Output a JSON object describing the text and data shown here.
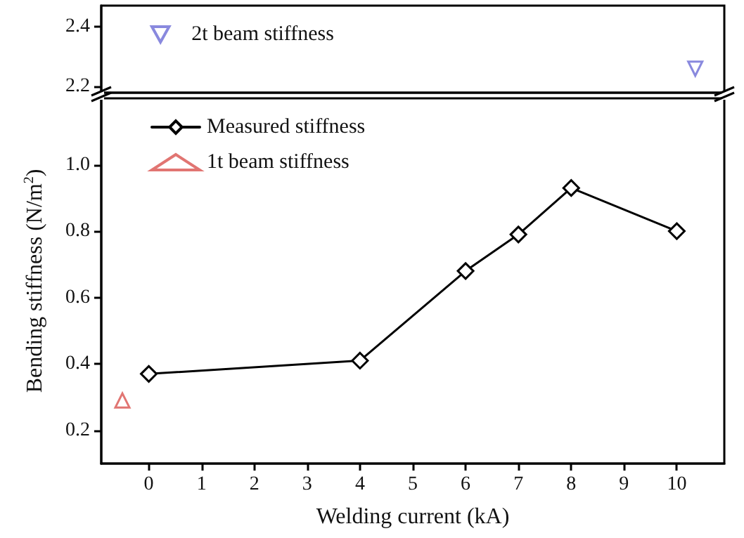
{
  "chart_data": [
    {
      "type": "scatter",
      "series": [
        {
          "name": "2t beam stiffness",
          "color": "#6b6bd6",
          "marker": "triangle-down",
          "x": [
            10.35
          ],
          "values": [
            2.26
          ]
        }
      ],
      "xlim": [
        -0.9,
        10.9
      ],
      "ylim": [
        2.18,
        2.47
      ],
      "yticks": [
        2.2,
        2.4
      ],
      "tick_labels": "y",
      "legend": "top left"
    },
    {
      "type": "line",
      "xlabel": "Welding current (kA)",
      "ylabel": "Bending stiffness (N/m$^{2}$)",
      "series": [
        {
          "name": "Measured stiffness",
          "color": "#000000",
          "marker": "diamond",
          "x": [
            0,
            4,
            6,
            7,
            8,
            10
          ],
          "values": [
            0.37,
            0.41,
            0.68,
            0.79,
            0.93,
            0.8
          ]
        },
        {
          "name": "1t beam stiffness",
          "type": "scatter",
          "color": "#d9534f",
          "marker": "triangle",
          "x": [
            -0.5
          ],
          "values": [
            0.29
          ]
        }
      ],
      "xlim": [
        -0.9,
        10.9
      ],
      "xticks": [
        0,
        1,
        2,
        3,
        4,
        5,
        6,
        7,
        8,
        9,
        10
      ],
      "ylim": [
        0.1,
        1.2
      ],
      "yticks": [
        0.2,
        0.4,
        0.6,
        0.8,
        {
          "value": 1,
          "label": "1.0"
        }
      ],
      "legend": "top left"
    }
  ]
}
